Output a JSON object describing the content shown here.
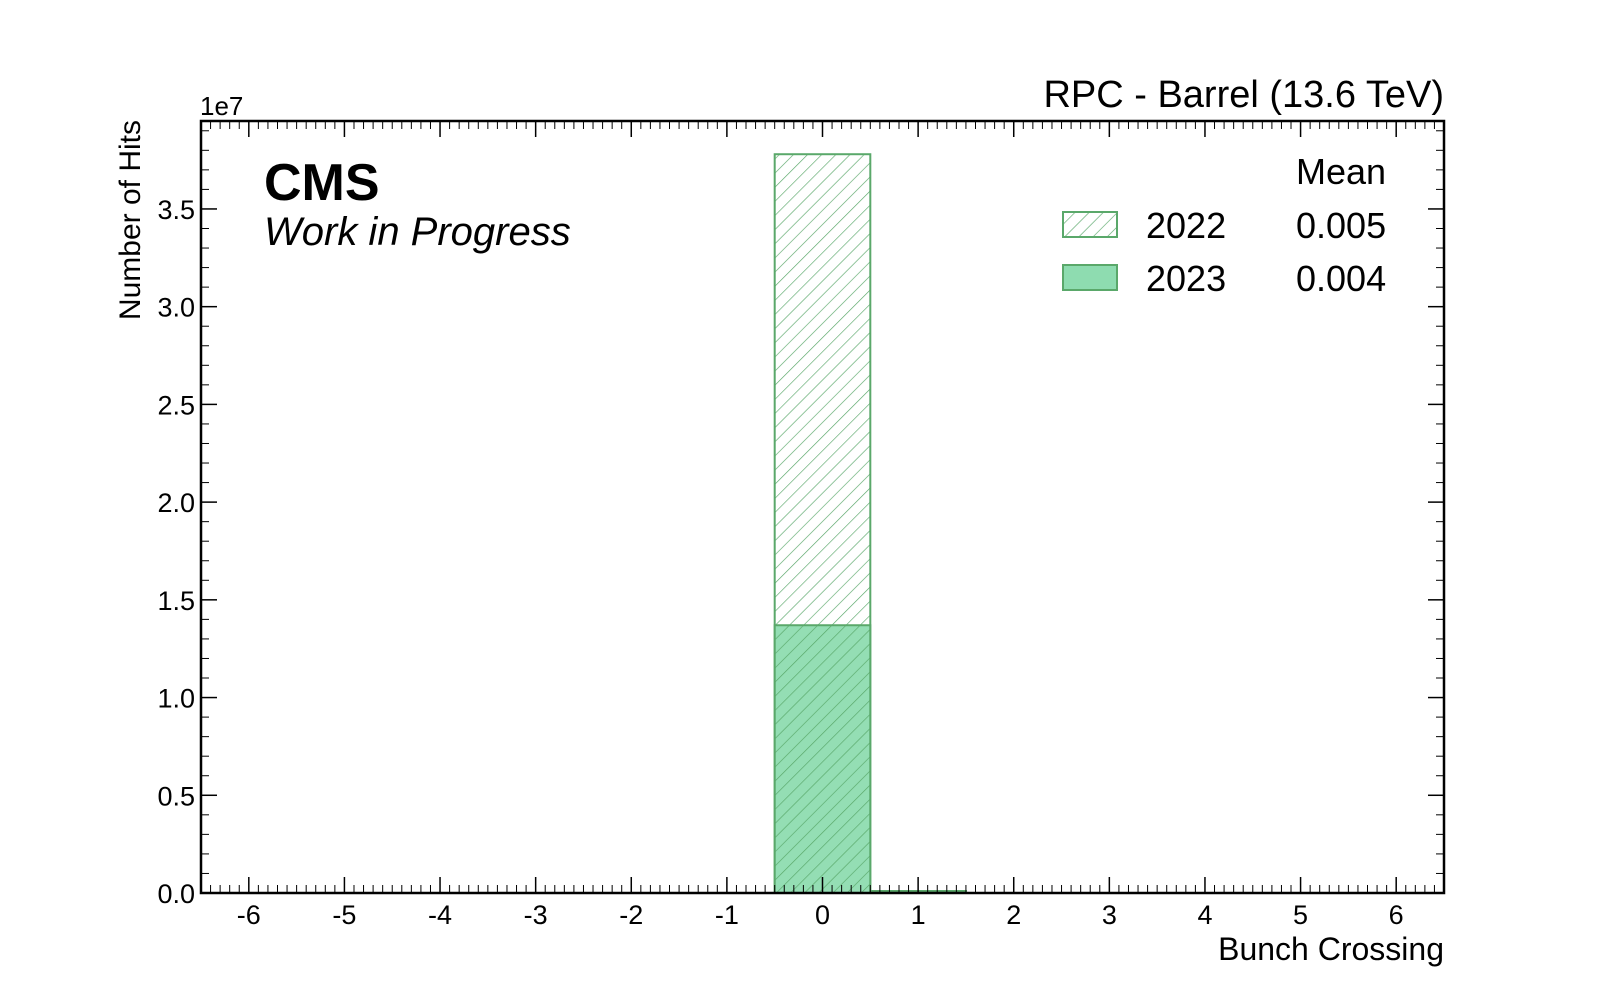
{
  "header": {
    "right_label": "RPC - Barrel (13.6 TeV)",
    "cms_label": "CMS",
    "status_label": "Work in Progress"
  },
  "legend": {
    "header": "Mean",
    "entries": [
      {
        "label": "2022",
        "mean": "0.005",
        "style": "hatched"
      },
      {
        "label": "2023",
        "mean": "0.004",
        "style": "filled"
      }
    ]
  },
  "colors": {
    "line": "#5aa86a",
    "fill_2023": "#8edcb0",
    "hatch": "#5aa86a"
  },
  "chart_data": {
    "type": "bar",
    "histogram": true,
    "title": "",
    "xlabel": "Bunch Crossing",
    "ylabel": "Number of Hits",
    "y_multiplier": "1e7",
    "xlim": [
      -6.5,
      6.5
    ],
    "ylim": [
      0,
      3.95
    ],
    "x_ticks": [
      "-6",
      "-5",
      "-4",
      "-3",
      "-2",
      "-1",
      "0",
      "1",
      "2",
      "3",
      "4",
      "5",
      "6"
    ],
    "y_ticks": [
      "0.0",
      "0.5",
      "1.0",
      "1.5",
      "2.0",
      "2.5",
      "3.0",
      "3.5"
    ],
    "categories": [
      -6,
      -5,
      -4,
      -3,
      -2,
      -1,
      0,
      1,
      2,
      3,
      4,
      5,
      6
    ],
    "series": [
      {
        "name": "2022",
        "values": [
          0,
          0,
          0,
          0,
          0,
          0,
          3.78,
          0.01,
          0,
          0,
          0,
          0,
          0
        ]
      },
      {
        "name": "2023",
        "values": [
          0,
          0,
          0,
          0,
          0,
          0,
          1.37,
          0.01,
          0,
          0,
          0,
          0,
          0
        ]
      }
    ],
    "grid": false,
    "legend_position": "top-right"
  }
}
